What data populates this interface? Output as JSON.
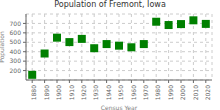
{
  "chart_data": {
    "type": "scatter",
    "title": "Population of Fremont, Iowa",
    "xlabel": "Census Year",
    "ylabel": "Population",
    "x": [
      1880,
      1890,
      1900,
      1910,
      1920,
      1930,
      1940,
      1950,
      1960,
      1970,
      1980,
      1990,
      2000,
      2010,
      2020
    ],
    "values": [
      155,
      381,
      549,
      502,
      536,
      437,
      481,
      464,
      447,
      481,
      718,
      683,
      693,
      733,
      695
    ],
    "color": "#008000",
    "marker": "square",
    "xlim": [
      1875,
      2025
    ],
    "ylim": [
      100,
      800
    ],
    "xticks": [
      1880,
      1890,
      1900,
      1910,
      1920,
      1930,
      1940,
      1950,
      1960,
      1970,
      1980,
      1990,
      2000,
      2010,
      2020
    ],
    "yticks": [
      200,
      300,
      400,
      500,
      600,
      700
    ],
    "grid": true
  }
}
